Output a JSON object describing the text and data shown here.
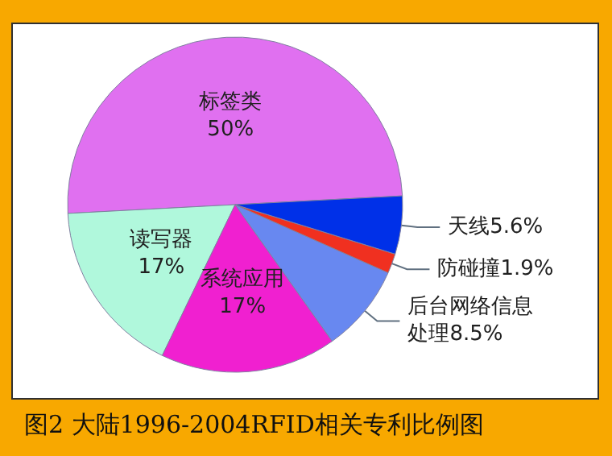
{
  "chart_data": {
    "type": "pie",
    "title": "图2 大陆1996-2004RFID相关专利比例图",
    "categories": [
      "标签类",
      "读写器",
      "系统应用",
      "后台网络信息处理",
      "防碰撞",
      "天线"
    ],
    "values": [
      50,
      17,
      17,
      8.5,
      1.9,
      5.6
    ],
    "colors": [
      "#e070f0",
      "#b0f8dc",
      "#f020d0",
      "#6888f0",
      "#f03020",
      "#0030e8"
    ],
    "value_labels": [
      "50%",
      "17%",
      "17%",
      "8.5%",
      "1.9%",
      "5.6%"
    ]
  }
}
